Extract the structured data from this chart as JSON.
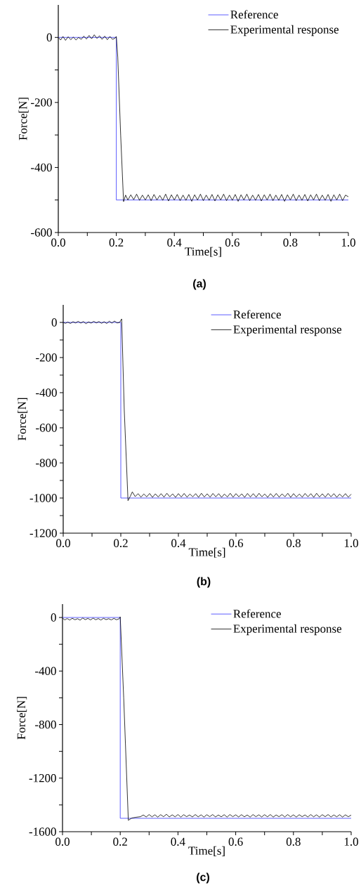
{
  "chart_data": [
    {
      "type": "line",
      "xlabel": "Time[s]",
      "ylabel": "Force[N]",
      "annotations": [
        "(a)"
      ],
      "legend": "top right",
      "xlim": [
        0,
        1
      ],
      "ylim": [
        -600,
        100
      ],
      "xticks": [
        {
          "value": 0,
          "label": "0.0"
        },
        {
          "value": 0.1,
          "label": null
        },
        0.2,
        {
          "value": 0.3,
          "label": null
        },
        0.4,
        {
          "value": 0.5,
          "label": null
        },
        0.6,
        {
          "value": 0.7,
          "label": null
        },
        0.8,
        {
          "value": 0.9,
          "label": null
        },
        {
          "value": 1,
          "label": "1.0"
        }
      ],
      "yticks": [
        -600,
        {
          "value": -500,
          "label": null
        },
        -400,
        {
          "value": -300,
          "label": null
        },
        -200,
        {
          "value": -100,
          "label": null
        },
        0
      ],
      "series": [
        {
          "name": "Reference",
          "color": "#3333ff",
          "x": [
            0,
            0.2,
            0.2,
            1
          ],
          "values": [
            0,
            0,
            -500,
            -500
          ]
        },
        {
          "name": "Experimental response",
          "color": "#000000",
          "x": [
            0,
            0.008,
            0.016,
            0.025,
            0.034,
            0.043,
            0.052,
            0.061,
            0.07,
            0.079,
            0.088,
            0.097,
            0.106,
            0.115,
            0.124,
            0.133,
            0.142,
            0.151,
            0.16,
            0.169,
            0.178,
            0.187,
            0.196,
            0.2,
            0.205,
            0.215,
            0.225,
            0.232,
            0.24,
            0.25,
            0.26,
            0.27,
            0.28,
            0.29,
            0.3,
            0.31,
            0.32,
            0.33,
            0.34,
            0.35,
            0.36,
            0.37,
            0.38,
            0.39,
            0.4,
            0.41,
            0.42,
            0.43,
            0.44,
            0.45,
            0.46,
            0.47,
            0.48,
            0.49,
            0.5,
            0.51,
            0.52,
            0.53,
            0.54,
            0.55,
            0.56,
            0.57,
            0.58,
            0.59,
            0.6,
            0.61,
            0.62,
            0.63,
            0.64,
            0.65,
            0.66,
            0.67,
            0.68,
            0.69,
            0.7,
            0.71,
            0.72,
            0.73,
            0.74,
            0.75,
            0.76,
            0.77,
            0.78,
            0.79,
            0.8,
            0.81,
            0.82,
            0.83,
            0.84,
            0.85,
            0.86,
            0.87,
            0.88,
            0.89,
            0.9,
            0.91,
            0.92,
            0.93,
            0.94,
            0.95,
            0.96,
            0.97,
            0.98,
            0.99,
            1
          ],
          "values": [
            0,
            -8,
            3,
            -9,
            2,
            -7,
            1,
            -8,
            0,
            -6,
            4,
            -5,
            6,
            -4,
            8,
            -3,
            5,
            -6,
            4,
            -7,
            3,
            -6,
            -2,
            3,
            -60,
            -300,
            -505,
            -485,
            -500,
            -484,
            -499,
            -482,
            -501,
            -485,
            -500,
            -484,
            -502,
            -483,
            -500,
            -486,
            -501,
            -482,
            -503,
            -484,
            -500,
            -483,
            -502,
            -485,
            -501,
            -483,
            -504,
            -484,
            -500,
            -482,
            -502,
            -485,
            -501,
            -483,
            -503,
            -484,
            -500,
            -482,
            -502,
            -485,
            -501,
            -483,
            -504,
            -484,
            -500,
            -482,
            -502,
            -485,
            -501,
            -483,
            -503,
            -484,
            -500,
            -482,
            -502,
            -485,
            -501,
            -483,
            -504,
            -484,
            -500,
            -482,
            -502,
            -485,
            -501,
            -483,
            -503,
            -484,
            -500,
            -482,
            -502,
            -485,
            -501,
            -483,
            -504,
            -484,
            -500,
            -482,
            -502,
            -485,
            -490
          ]
        }
      ]
    },
    {
      "type": "line",
      "xlabel": "Time[s]",
      "ylabel": "Force[N]",
      "annotations": [
        "(b)"
      ],
      "legend": "top right",
      "xlim": [
        0,
        1
      ],
      "ylim": [
        -1200,
        100
      ],
      "xticks": [
        {
          "value": 0,
          "label": "0.0"
        },
        {
          "value": 0.1,
          "label": null
        },
        0.2,
        {
          "value": 0.3,
          "label": null
        },
        0.4,
        {
          "value": 0.5,
          "label": null
        },
        0.6,
        {
          "value": 0.7,
          "label": null
        },
        0.8,
        {
          "value": 0.9,
          "label": null
        },
        {
          "value": 1,
          "label": "1.0"
        }
      ],
      "yticks": [
        -1200,
        {
          "value": -1100,
          "label": null
        },
        -1000,
        {
          "value": -900,
          "label": null
        },
        -800,
        {
          "value": -700,
          "label": null
        },
        -600,
        {
          "value": -500,
          "label": null
        },
        -400,
        {
          "value": -300,
          "label": null
        },
        -200,
        {
          "value": -100,
          "label": null
        },
        0
      ],
      "series": [
        {
          "name": "Reference",
          "color": "#3333ff",
          "x": [
            0,
            0.2,
            0.2,
            1
          ],
          "values": [
            0,
            0,
            -1000,
            -1000
          ]
        },
        {
          "name": "Experimental response",
          "color": "#000000",
          "x": [
            0,
            0.008,
            0.016,
            0.025,
            0.034,
            0.043,
            0.052,
            0.061,
            0.07,
            0.079,
            0.088,
            0.097,
            0.106,
            0.115,
            0.124,
            0.133,
            0.142,
            0.151,
            0.16,
            0.169,
            0.178,
            0.187,
            0.196,
            0.203,
            0.212,
            0.225,
            0.233,
            0.24,
            0.25,
            0.26,
            0.27,
            0.28,
            0.29,
            0.3,
            0.31,
            0.32,
            0.33,
            0.34,
            0.35,
            0.36,
            0.37,
            0.38,
            0.39,
            0.4,
            0.41,
            0.42,
            0.43,
            0.44,
            0.45,
            0.46,
            0.47,
            0.48,
            0.49,
            0.5,
            0.51,
            0.52,
            0.53,
            0.54,
            0.55,
            0.56,
            0.57,
            0.58,
            0.59,
            0.6,
            0.61,
            0.62,
            0.63,
            0.64,
            0.65,
            0.66,
            0.67,
            0.68,
            0.69,
            0.7,
            0.71,
            0.72,
            0.73,
            0.74,
            0.75,
            0.76,
            0.77,
            0.78,
            0.79,
            0.8,
            0.81,
            0.82,
            0.83,
            0.84,
            0.85,
            0.86,
            0.87,
            0.88,
            0.89,
            0.9,
            0.91,
            0.92,
            0.93,
            0.94,
            0.95,
            0.96,
            0.97,
            0.98,
            0.99,
            1
          ],
          "values": [
            0,
            -5,
            2,
            -6,
            4,
            -3,
            6,
            -4,
            5,
            -7,
            3,
            -4,
            6,
            -3,
            5,
            -5,
            4,
            -6,
            7,
            -4,
            8,
            -3,
            0,
            20,
            -500,
            -1015,
            -990,
            -965,
            -992,
            -975,
            -995,
            -977,
            -993,
            -974,
            -996,
            -976,
            -994,
            -975,
            -995,
            -973,
            -993,
            -976,
            -996,
            -975,
            -994,
            -974,
            -995,
            -977,
            -993,
            -975,
            -996,
            -973,
            -994,
            -976,
            -995,
            -974,
            -993,
            -975,
            -996,
            -977,
            -994,
            -973,
            -995,
            -975,
            -993,
            -976,
            -996,
            -974,
            -994,
            -975,
            -995,
            -973,
            -993,
            -977,
            -996,
            -975,
            -994,
            -974,
            -995,
            -976,
            -993,
            -973,
            -996,
            -975,
            -994,
            -977,
            -995,
            -974,
            -993,
            -975,
            -996,
            -973,
            -994,
            -976,
            -995,
            -974,
            -993,
            -975,
            -996,
            -977,
            -994,
            -975,
            -995,
            -978
          ]
        }
      ]
    },
    {
      "type": "line",
      "xlabel": "Time[s]",
      "ylabel": "Force[N]",
      "annotations": [
        "(c)"
      ],
      "legend": "top right",
      "xlim": [
        0,
        1
      ],
      "ylim": [
        -1600,
        100
      ],
      "xticks": [
        {
          "value": 0,
          "label": "0.0"
        },
        {
          "value": 0.1,
          "label": null
        },
        0.2,
        {
          "value": 0.3,
          "label": null
        },
        0.4,
        {
          "value": 0.5,
          "label": null
        },
        0.6,
        {
          "value": 0.7,
          "label": null
        },
        0.8,
        {
          "value": 0.9,
          "label": null
        },
        {
          "value": 1,
          "label": "1.0"
        }
      ],
      "yticks": [
        -1600,
        {
          "value": -1400,
          "label": null
        },
        -1200,
        {
          "value": -1000,
          "label": null
        },
        -800,
        {
          "value": -600,
          "label": null
        },
        -400,
        {
          "value": -200,
          "label": null
        },
        0
      ],
      "series": [
        {
          "name": "Reference",
          "color": "#3333ff",
          "x": [
            0,
            0.2,
            0.2,
            1
          ],
          "values": [
            0,
            0,
            -1500,
            -1500
          ]
        },
        {
          "name": "Experimental response",
          "color": "#000000",
          "x": [
            0,
            0.008,
            0.016,
            0.025,
            0.034,
            0.043,
            0.052,
            0.061,
            0.07,
            0.079,
            0.088,
            0.097,
            0.106,
            0.115,
            0.124,
            0.133,
            0.142,
            0.151,
            0.16,
            0.169,
            0.178,
            0.187,
            0.196,
            0.2,
            0.212,
            0.228,
            0.24,
            0.255,
            0.27,
            0.28,
            0.29,
            0.3,
            0.31,
            0.32,
            0.33,
            0.34,
            0.35,
            0.36,
            0.37,
            0.38,
            0.39,
            0.4,
            0.41,
            0.42,
            0.43,
            0.44,
            0.45,
            0.46,
            0.47,
            0.48,
            0.49,
            0.5,
            0.51,
            0.52,
            0.53,
            0.54,
            0.55,
            0.56,
            0.57,
            0.58,
            0.59,
            0.6,
            0.61,
            0.62,
            0.63,
            0.64,
            0.65,
            0.66,
            0.67,
            0.68,
            0.69,
            0.7,
            0.71,
            0.72,
            0.73,
            0.74,
            0.75,
            0.76,
            0.77,
            0.78,
            0.79,
            0.8,
            0.81,
            0.82,
            0.83,
            0.84,
            0.85,
            0.86,
            0.87,
            0.88,
            0.89,
            0.9,
            0.91,
            0.92,
            0.93,
            0.94,
            0.95,
            0.96,
            0.97,
            0.98,
            0.99,
            1
          ],
          "values": [
            -5,
            -18,
            -8,
            -19,
            -6,
            -17,
            -9,
            -20,
            -4,
            -16,
            -7,
            -18,
            -5,
            -17,
            -8,
            -19,
            -6,
            -16,
            -9,
            -18,
            -7,
            -17,
            -10,
            5,
            -600,
            -1515,
            -1498,
            -1492,
            -1488,
            -1475,
            -1490,
            -1472,
            -1489,
            -1474,
            -1491,
            -1473,
            -1488,
            -1470,
            -1490,
            -1474,
            -1489,
            -1472,
            -1491,
            -1473,
            -1488,
            -1475,
            -1490,
            -1472,
            -1489,
            -1474,
            -1491,
            -1473,
            -1488,
            -1472,
            -1490,
            -1475,
            -1489,
            -1473,
            -1491,
            -1472,
            -1488,
            -1474,
            -1490,
            -1473,
            -1489,
            -1475,
            -1491,
            -1472,
            -1488,
            -1474,
            -1490,
            -1473,
            -1489,
            -1472,
            -1491,
            -1475,
            -1488,
            -1473,
            -1490,
            -1472,
            -1489,
            -1474,
            -1491,
            -1473,
            -1488,
            -1475,
            -1490,
            -1472,
            -1489,
            -1474,
            -1491,
            -1473,
            -1488,
            -1472,
            -1490,
            -1475,
            -1489,
            -1473,
            -1491,
            -1474,
            -1488,
            -1476
          ]
        }
      ]
    }
  ]
}
